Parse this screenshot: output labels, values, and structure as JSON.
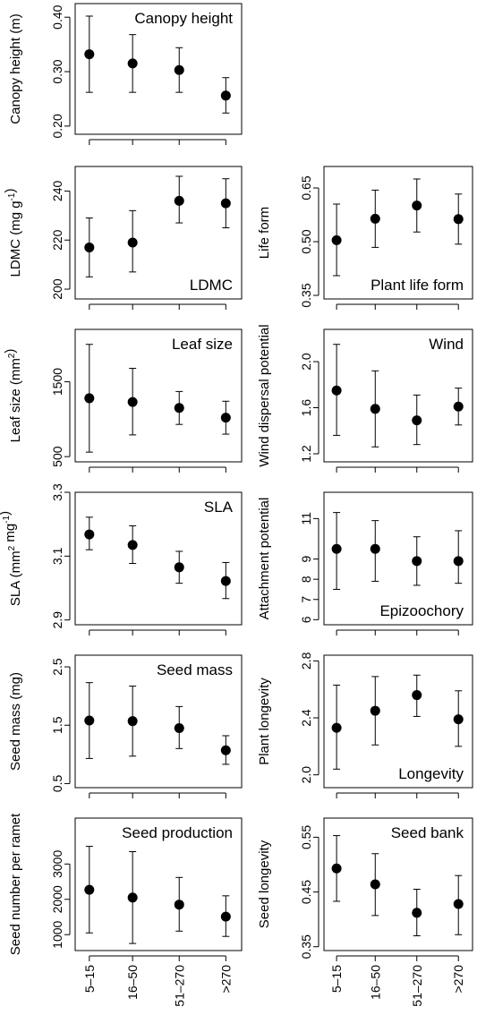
{
  "chart_data": [
    {
      "type": "scatter",
      "title": "Canopy height",
      "ylabel": "Canopy height (m)",
      "categories": [
        "5–15",
        "16–50",
        "51–270",
        ">270"
      ],
      "y_ticks": [
        0.2,
        0.3,
        0.4
      ],
      "y_tick_labels": [
        "0.20",
        "0.30",
        "0.40"
      ],
      "ylim": [
        0.185,
        0.425
      ],
      "title_position": "top-right",
      "values": [
        0.332,
        0.315,
        0.303,
        0.256
      ],
      "lower": [
        0.262,
        0.262,
        0.262,
        0.224
      ],
      "upper": [
        0.402,
        0.368,
        0.344,
        0.289
      ]
    },
    {
      "type": "scatter",
      "title": "LDMC",
      "ylabel": "LDMC (mg g⁻¹)",
      "categories": [
        "5–15",
        "16–50",
        "51–270",
        ">270"
      ],
      "y_ticks": [
        200,
        220,
        240
      ],
      "y_tick_labels": [
        "200",
        "220",
        "240"
      ],
      "ylim": [
        196,
        250
      ],
      "title_position": "bottom-right",
      "values": [
        217,
        219,
        236,
        235
      ],
      "lower": [
        205,
        207,
        227,
        225
      ],
      "upper": [
        229,
        232,
        246,
        245
      ]
    },
    {
      "type": "scatter",
      "title": "Plant life form",
      "ylabel": "Life form",
      "categories": [
        "5–15",
        "16–50",
        "51–270",
        ">270"
      ],
      "y_ticks": [
        0.35,
        0.5,
        0.65
      ],
      "y_tick_labels": [
        "0.35",
        "0.50",
        "0.65"
      ],
      "ylim": [
        0.34,
        0.71
      ],
      "title_position": "bottom-right",
      "values": [
        0.504,
        0.564,
        0.601,
        0.563
      ],
      "lower": [
        0.405,
        0.484,
        0.527,
        0.493
      ],
      "upper": [
        0.605,
        0.644,
        0.675,
        0.633
      ]
    },
    {
      "type": "scatter",
      "title": "Leaf size",
      "ylabel": "Leaf size (mm²)",
      "categories": [
        "5–15",
        "16–50",
        "51–270",
        ">270"
      ],
      "y_ticks": [
        500,
        1500
      ],
      "y_tick_labels": [
        "500",
        "1500"
      ],
      "ylim": [
        430,
        2200
      ],
      "title_position": "top-right",
      "values": [
        1280,
        1230,
        1150,
        1020
      ],
      "lower": [
        560,
        790,
        930,
        800
      ],
      "upper": [
        2000,
        1680,
        1370,
        1240
      ]
    },
    {
      "type": "scatter",
      "title": "Wind",
      "ylabel": "Wind dispersal potential",
      "categories": [
        "5–15",
        "16–50",
        "51–270",
        ">270"
      ],
      "y_ticks": [
        1.2,
        1.6,
        2.0
      ],
      "y_tick_labels": [
        "1.2",
        "1.6",
        "2.0"
      ],
      "ylim": [
        1.13,
        2.28
      ],
      "title_position": "top-right",
      "values": [
        1.75,
        1.59,
        1.49,
        1.61
      ],
      "lower": [
        1.36,
        1.26,
        1.28,
        1.45
      ],
      "upper": [
        2.15,
        1.92,
        1.71,
        1.77
      ]
    },
    {
      "type": "scatter",
      "title": "SLA",
      "ylabel": "SLA (mm² mg⁻¹)",
      "categories": [
        "5–15",
        "16–50",
        "51–270",
        ">270"
      ],
      "y_ticks": [
        2.9,
        3.1,
        3.3
      ],
      "y_tick_labels": [
        "2.9",
        "3.1",
        "3.3"
      ],
      "ylim": [
        2.885,
        3.3
      ],
      "title_position": "top-right",
      "values": [
        3.168,
        3.135,
        3.065,
        3.022
      ],
      "lower": [
        3.12,
        3.077,
        3.015,
        2.967
      ],
      "upper": [
        3.222,
        3.195,
        3.115,
        3.08
      ]
    },
    {
      "type": "scatter",
      "title": "Epizoochory",
      "ylabel": "Attachment potential",
      "categories": [
        "5–15",
        "16–50",
        "51–270",
        ">270"
      ],
      "y_ticks": [
        6,
        7,
        8,
        9,
        11
      ],
      "y_tick_labels": [
        "6",
        "7",
        "8",
        "9",
        "11"
      ],
      "ylim": [
        5.75,
        12.3
      ],
      "title_position": "bottom-right",
      "values": [
        9.5,
        9.5,
        8.9,
        8.9
      ],
      "lower": [
        7.5,
        7.9,
        7.7,
        7.8
      ],
      "upper": [
        11.3,
        10.9,
        10.1,
        10.4
      ]
    },
    {
      "type": "scatter",
      "title": "Seed mass",
      "ylabel": "Seed mass (mg)",
      "categories": [
        "5–15",
        "16–50",
        "51–270",
        ">270"
      ],
      "y_ticks": [
        0.5,
        1.5,
        2.5
      ],
      "y_tick_labels": [
        "0.5",
        "1.5",
        "2.5"
      ],
      "ylim": [
        0.43,
        2.7
      ],
      "title_position": "top-right",
      "values": [
        1.58,
        1.57,
        1.45,
        1.07
      ],
      "lower": [
        0.93,
        0.97,
        1.1,
        0.83
      ],
      "upper": [
        2.23,
        2.17,
        1.82,
        1.32
      ]
    },
    {
      "type": "scatter",
      "title": "Longevity",
      "ylabel": "Plant longevity",
      "categories": [
        "5–15",
        "16–50",
        "51–270",
        ">270"
      ],
      "y_ticks": [
        2.0,
        2.4,
        2.8
      ],
      "y_tick_labels": [
        "2.0",
        "2.4",
        "2.8"
      ],
      "ylim": [
        1.91,
        2.84
      ],
      "title_position": "bottom-right",
      "values": [
        2.33,
        2.45,
        2.56,
        2.39
      ],
      "lower": [
        2.04,
        2.21,
        2.41,
        2.2
      ],
      "upper": [
        2.63,
        2.69,
        2.7,
        2.59
      ]
    },
    {
      "type": "scatter",
      "title": "Seed production",
      "ylabel": "Seed number per ramet",
      "categories": [
        "5–15",
        "16–50",
        "51–270",
        ">270"
      ],
      "x_tick_labels": [
        "5–15",
        "16–50",
        "51–270",
        ">270"
      ],
      "y_ticks": [
        1000,
        2000,
        3000
      ],
      "y_tick_labels": [
        "1000",
        "2000",
        "3000"
      ],
      "ylim": [
        550,
        4300
      ],
      "title_position": "top-right",
      "values": [
        2270,
        2050,
        1850,
        1510
      ],
      "lower": [
        1050,
        750,
        1100,
        950
      ],
      "upper": [
        3500,
        3350,
        2620,
        2100
      ]
    },
    {
      "type": "scatter",
      "title": "Seed bank",
      "ylabel": "Seed longevity",
      "categories": [
        "5–15",
        "16–50",
        "51–270",
        ">270"
      ],
      "x_tick_labels": [
        "5–15",
        "16–50",
        "51–270",
        ">270"
      ],
      "y_ticks": [
        0.35,
        0.45,
        0.55
      ],
      "y_tick_labels": [
        "0.35",
        "0.45",
        "0.55"
      ],
      "ylim": [
        0.343,
        0.585
      ],
      "title_position": "top-right",
      "values": [
        0.493,
        0.464,
        0.412,
        0.428
      ],
      "lower": [
        0.433,
        0.407,
        0.37,
        0.372
      ],
      "upper": [
        0.553,
        0.52,
        0.455,
        0.48
      ]
    }
  ]
}
